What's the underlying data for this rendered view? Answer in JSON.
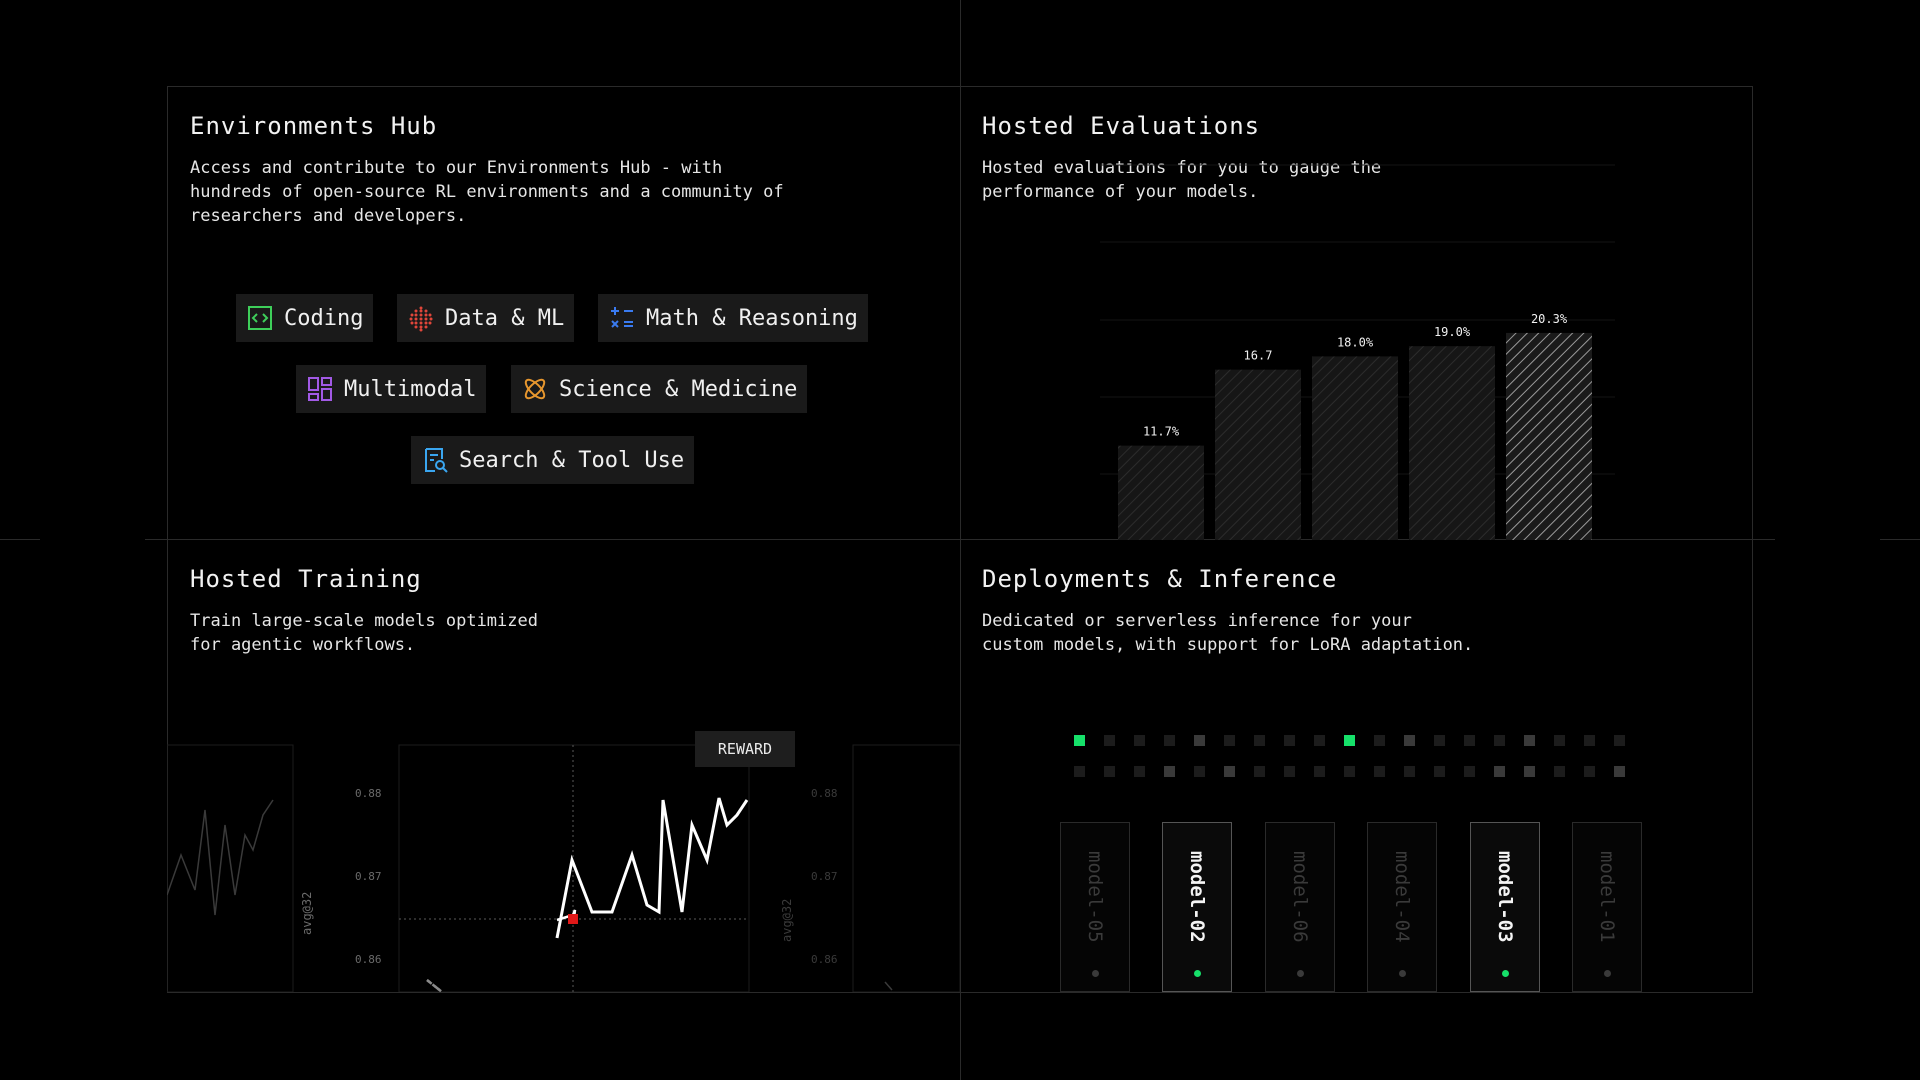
{
  "environments": {
    "title": "Environments Hub",
    "description": "Access and contribute to our Environments Hub - with\nhundreds of open-source RL environments and a community of\nresearchers and developers.",
    "tags": [
      {
        "label": "Coding",
        "icon": "code-icon",
        "color": "#3ecf5a"
      },
      {
        "label": "Data & ML",
        "icon": "data-grid-icon",
        "color": "#e0463a"
      },
      {
        "label": "Math & Reasoning",
        "icon": "math-ops-icon",
        "color": "#3a7bf0"
      },
      {
        "label": "Multimodal",
        "icon": "layout-grid-icon",
        "color": "#a25ae6"
      },
      {
        "label": "Science & Medicine",
        "icon": "atom-icon",
        "color": "#e6962e"
      },
      {
        "label": "Search & Tool Use",
        "icon": "doc-search-icon",
        "color": "#3aa6f0"
      }
    ]
  },
  "evaluations": {
    "title": "Hosted Evaluations",
    "description": "Hosted evaluations for you to gauge the\nperformance of your models."
  },
  "chart_data": {
    "type": "bar",
    "values": [
      11.7,
      16.7,
      18.0,
      19.0,
      20.3
    ],
    "labels": [
      "11.7%",
      "16.7",
      "18.0%",
      "19.0%",
      "20.3%"
    ],
    "highlight_index": 4
  },
  "training": {
    "title": "Hosted Training",
    "description": "Train large-scale models optimized\nfor agentic workflows.",
    "reward_label": "REWARD",
    "axis_label": "avg@32",
    "ticks": [
      "0.88",
      "0.87",
      "0.86"
    ]
  },
  "deployments": {
    "title": "Deployments & Inference",
    "description": "Dedicated or serverless inference for your\ncustom models, with support for LoRA adaptation.",
    "models": [
      {
        "name": "model-05",
        "active": false
      },
      {
        "name": "model-02",
        "active": true
      },
      {
        "name": "model-06",
        "active": false
      },
      {
        "name": "model-04",
        "active": false
      },
      {
        "name": "model-03",
        "active": true
      },
      {
        "name": "model-01",
        "active": false
      }
    ]
  }
}
